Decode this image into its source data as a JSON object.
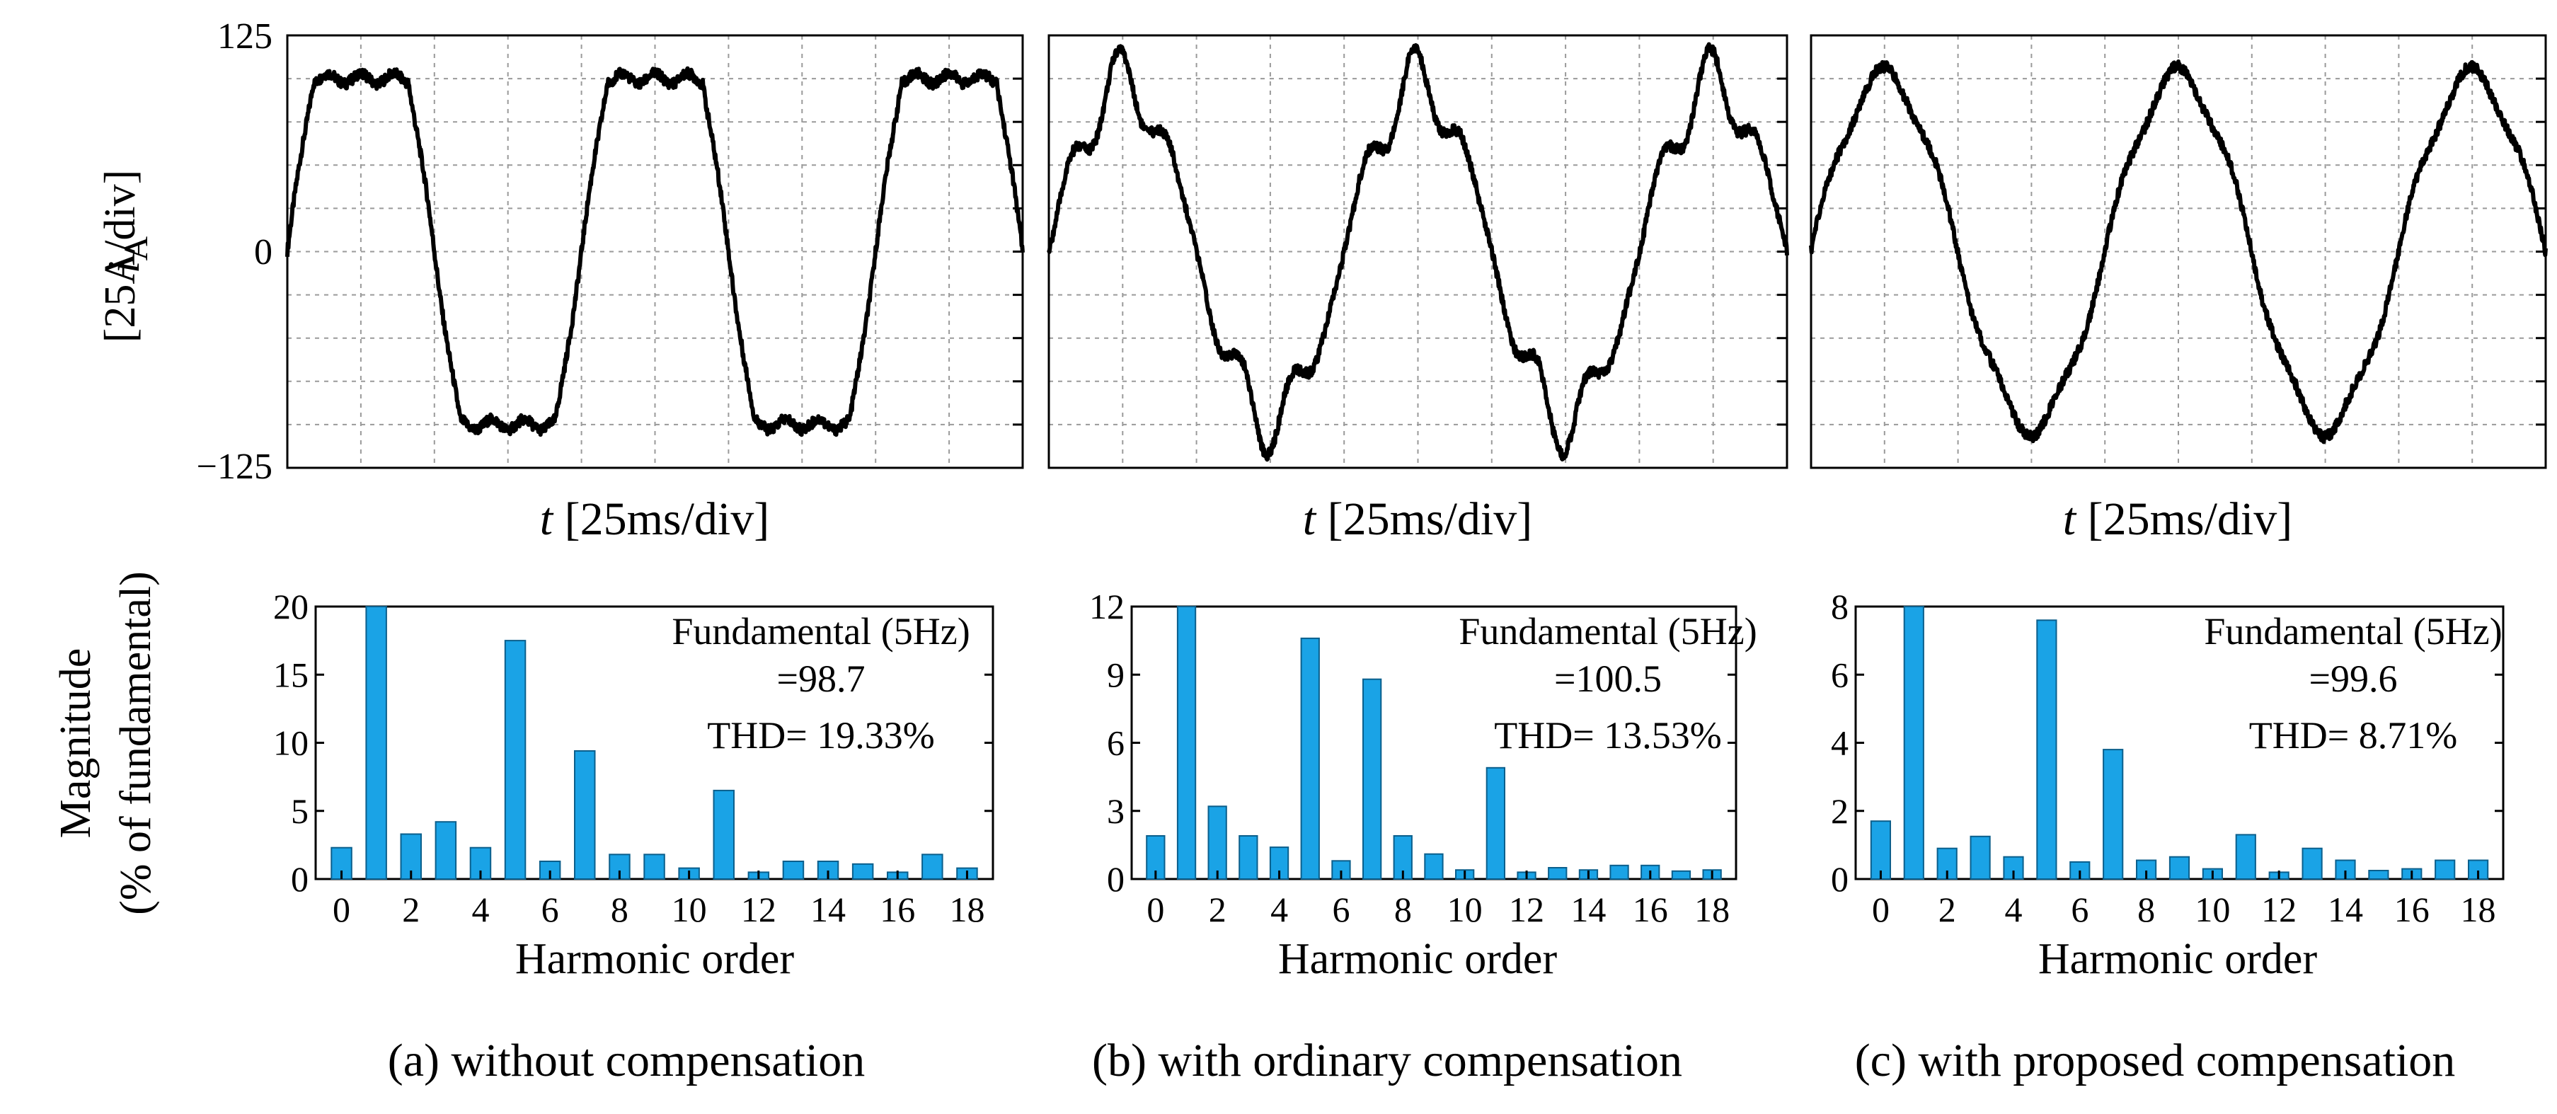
{
  "y_axis_top": {
    "symbol": "i",
    "subscript": "A",
    "unit": "[25A/div]",
    "ticks": [
      "125",
      "0",
      "−125"
    ]
  },
  "y_axis_bottom": {
    "line1": "Magnitude",
    "line2": "(% of fundamental)"
  },
  "x_label_top": {
    "symbol": "t",
    "unit": "[25ms/div]"
  },
  "x_label_bottom": "Harmonic order",
  "colors": {
    "bar_fill": "#1aa3e6",
    "bar_stroke": "#0b5f8c",
    "wave": "#000000",
    "grid": "#9a9a9a"
  },
  "chart_data": [
    {
      "type": "line",
      "title": "",
      "xlabel": "t [25ms/div]",
      "ylabel": "iA [25A/div]",
      "ylim": [
        -125,
        125
      ],
      "x_divisions": 10,
      "y_divisions": 10,
      "description_shape": "trapezoidal (flat-top)",
      "peak": 100,
      "cycles": 2.5
    },
    {
      "type": "line",
      "title": "",
      "xlabel": "t [25ms/div]",
      "ylabel": "iA [25A/div]",
      "ylim": [
        -125,
        125
      ],
      "x_divisions": 10,
      "y_divisions": 10,
      "description_shape": "distorted sinusoid",
      "peak": 105,
      "cycles": 2.5
    },
    {
      "type": "line",
      "title": "",
      "xlabel": "t [25ms/div]",
      "ylabel": "iA [25A/div]",
      "ylim": [
        -125,
        125
      ],
      "x_divisions": 10,
      "y_divisions": 10,
      "description_shape": "near sinusoid",
      "peak": 105,
      "cycles": 2.5
    },
    {
      "type": "bar",
      "caption": "(a) without compensation",
      "xlabel": "Harmonic order",
      "ylabel": "Magnitude (% of fundamental)",
      "categories": [
        0,
        1,
        2,
        3,
        4,
        5,
        6,
        7,
        8,
        9,
        10,
        11,
        12,
        13,
        14,
        15,
        16,
        17,
        18
      ],
      "x_tick_labels": [
        "0",
        "2",
        "4",
        "6",
        "8",
        "10",
        "12",
        "14",
        "16",
        "18"
      ],
      "y_tick_labels": [
        "20",
        "15",
        "10",
        "5",
        "0"
      ],
      "values": [
        2.3,
        20,
        3.3,
        4.2,
        2.3,
        17.5,
        1.3,
        9.4,
        1.8,
        1.8,
        0.8,
        6.5,
        0.5,
        1.3,
        1.3,
        1.1,
        0.5,
        1.8,
        0.8
      ],
      "ylim": [
        0,
        20
      ],
      "annotation": {
        "line1": "Fundamental (5Hz)",
        "line2": "=98.7",
        "line3": "THD= 19.33%"
      }
    },
    {
      "type": "bar",
      "caption": "(b) with ordinary compensation",
      "xlabel": "Harmonic order",
      "ylabel": "Magnitude (% of fundamental)",
      "categories": [
        0,
        1,
        2,
        3,
        4,
        5,
        6,
        7,
        8,
        9,
        10,
        11,
        12,
        13,
        14,
        15,
        16,
        17,
        18
      ],
      "x_tick_labels": [
        "0",
        "2",
        "4",
        "6",
        "8",
        "10",
        "12",
        "14",
        "16",
        "18"
      ],
      "y_tick_labels": [
        "12",
        "9",
        "6",
        "3",
        "0"
      ],
      "values": [
        1.9,
        12,
        3.2,
        1.9,
        1.4,
        10.6,
        0.8,
        8.8,
        1.9,
        1.1,
        0.4,
        4.9,
        0.3,
        0.5,
        0.4,
        0.6,
        0.6,
        0.35,
        0.4
      ],
      "ylim": [
        0,
        12
      ],
      "annotation": {
        "line1": "Fundamental (5Hz)",
        "line2": "=100.5",
        "line3": "THD= 13.53%"
      }
    },
    {
      "type": "bar",
      "caption": "(c) with proposed compensation",
      "xlabel": "Harmonic order",
      "ylabel": "Magnitude (% of fundamental)",
      "categories": [
        0,
        1,
        2,
        3,
        4,
        5,
        6,
        7,
        8,
        9,
        10,
        11,
        12,
        13,
        14,
        15,
        16,
        17,
        18
      ],
      "x_tick_labels": [
        "0",
        "2",
        "4",
        "6",
        "8",
        "10",
        "12",
        "14",
        "16",
        "18"
      ],
      "y_tick_labels": [
        "8",
        "6",
        "4",
        "2",
        "0"
      ],
      "values": [
        1.7,
        8,
        0.9,
        1.25,
        0.65,
        7.6,
        0.5,
        3.8,
        0.55,
        0.65,
        0.3,
        1.3,
        0.2,
        0.9,
        0.55,
        0.25,
        0.3,
        0.55,
        0.55
      ],
      "ylim": [
        0,
        8
      ],
      "annotation": {
        "line1": "Fundamental (5Hz)",
        "line2": "=99.6",
        "line3": "THD= 8.71%"
      }
    }
  ]
}
